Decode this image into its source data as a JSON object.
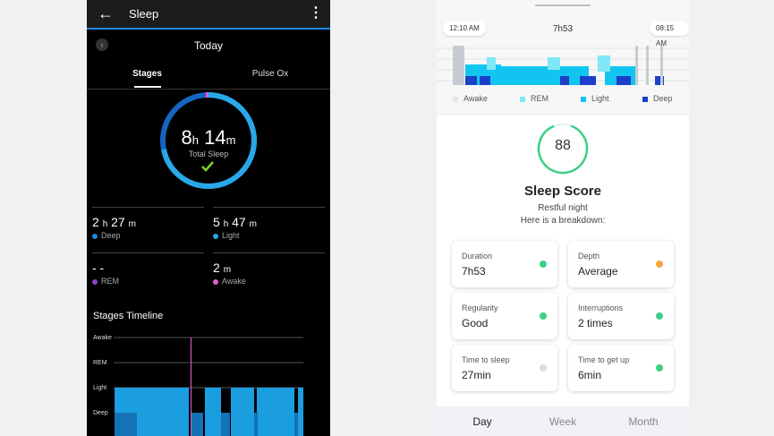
{
  "left": {
    "header": {
      "title": "Sleep"
    },
    "date": "Today",
    "tabs": [
      "Stages",
      "Pulse Ox"
    ],
    "summary": {
      "hours": "8",
      "hours_unit": "h",
      "minutes": "14",
      "minutes_unit": "m",
      "label": "Total Sleep"
    },
    "stats": [
      {
        "value": "2",
        "value_unit": "h",
        "value2": "27",
        "value2_unit": "m",
        "label": "Deep",
        "color": "#1e88e5"
      },
      {
        "value": "5",
        "value_unit": "h",
        "value2": "47",
        "value2_unit": "m",
        "label": "Light",
        "color": "#29a8e8"
      },
      {
        "value": "- -",
        "value_unit": "",
        "value2": "",
        "value2_unit": "",
        "label": "REM",
        "color": "#8e44c9"
      },
      {
        "value": "2",
        "value_unit": "m",
        "value2": "",
        "value2_unit": "",
        "label": "Awake",
        "color": "#e65cd6"
      }
    ],
    "timeline": {
      "title": "Stages Timeline",
      "levels": [
        "Awake",
        "REM",
        "Light",
        "Deep"
      ]
    }
  },
  "right": {
    "start_time": "12:10 AM",
    "end_time": "08:15 AM",
    "duration": "7h53",
    "legend": [
      {
        "label": "Awake",
        "color": "#e3e6ea"
      },
      {
        "label": "REM",
        "color": "#7fe7f5"
      },
      {
        "label": "Light",
        "color": "#12c5f0"
      },
      {
        "label": "Deep",
        "color": "#1b3fc9"
      }
    ],
    "score": {
      "value": "88",
      "title": "Sleep Score",
      "subtitle": "Restful night",
      "breakdown": "Here is a breakdown:",
      "ring_color": "#3ccf86"
    },
    "cards": [
      {
        "label": "Duration",
        "value": "7h53",
        "status_color": "#3ccf86"
      },
      {
        "label": "Depth",
        "value": "Average",
        "status_color": "#f5a53c"
      },
      {
        "label": "Regularity",
        "value": "Good",
        "status_color": "#3ccf86"
      },
      {
        "label": "Interruptions",
        "value": "2 times",
        "status_color": "#3ccf86"
      },
      {
        "label": "Time to sleep",
        "value": "27min",
        "status_color": "#d7dde6"
      },
      {
        "label": "Time to get up",
        "value": "6min",
        "status_color": "#3ccf86"
      }
    ],
    "nav": [
      "Day",
      "Week",
      "Month"
    ]
  }
}
